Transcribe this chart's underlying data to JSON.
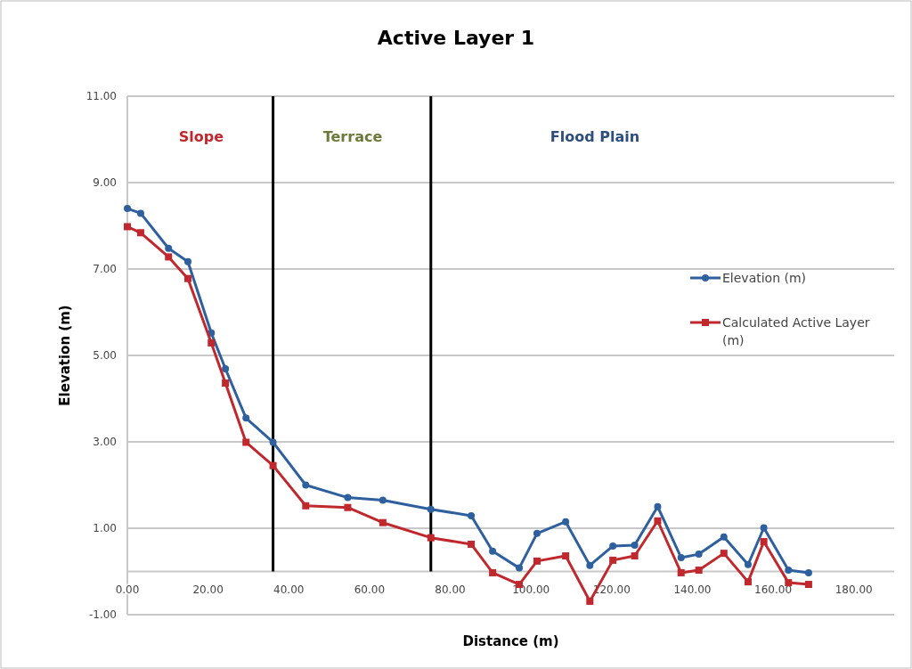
{
  "chart_data": {
    "type": "line",
    "title": "Active Layer 1",
    "xlabel": "Distance (m)",
    "ylabel": "Elevation (m)",
    "x": [
      0,
      3.3,
      10.2,
      15.0,
      20.8,
      24.3,
      29.4,
      36.1,
      44.2,
      54.6,
      63.3,
      75.2,
      85.2,
      90.5,
      97.1,
      101.5,
      108.6,
      114.6,
      120.3,
      125.7,
      131.4,
      137.2,
      141.6,
      147.8,
      153.8,
      157.7,
      163.8,
      168.8
    ],
    "series": [
      {
        "name": "Elevation (m)",
        "color": "#2e5f9e",
        "marker": "circle",
        "values": [
          8.4,
          8.29,
          7.48,
          7.17,
          5.52,
          4.69,
          3.55,
          2.99,
          2.0,
          1.71,
          1.65,
          1.44,
          1.29,
          0.47,
          0.08,
          0.88,
          1.15,
          0.14,
          0.59,
          0.61,
          1.5,
          0.32,
          0.4,
          0.8,
          0.16,
          1.01,
          0.03,
          -0.03
        ]
      },
      {
        "name": "Calculated Active Layer (m)",
        "color": "#c0282d",
        "marker": "square",
        "values": [
          7.98,
          7.84,
          7.28,
          6.78,
          5.29,
          4.36,
          2.99,
          2.45,
          1.52,
          1.48,
          1.13,
          0.78,
          0.63,
          -0.03,
          -0.3,
          0.24,
          0.36,
          -0.69,
          0.26,
          0.36,
          1.17,
          -0.03,
          0.03,
          0.42,
          -0.24,
          0.69,
          -0.26,
          -0.3
        ]
      }
    ],
    "xlim": [
      0,
      190
    ],
    "xticks": [
      {
        "value": 0,
        "label": "0.00"
      },
      {
        "value": 20,
        "label": "20.00"
      },
      {
        "value": 40,
        "label": "40.00"
      },
      {
        "value": 60,
        "label": "60.00"
      },
      {
        "value": 80,
        "label": "80.00"
      },
      {
        "value": 100,
        "label": "100.00"
      },
      {
        "value": 120,
        "label": "120.00"
      },
      {
        "value": 140,
        "label": "140.00"
      },
      {
        "value": 160,
        "label": "160.00"
      },
      {
        "value": 180,
        "label": "180.00"
      }
    ],
    "ylim": [
      -1,
      11
    ],
    "yticks": [
      {
        "value": -1,
        "label": "-1.00"
      },
      {
        "value": 1,
        "label": "1.00"
      },
      {
        "value": 3,
        "label": "3.00"
      },
      {
        "value": 5,
        "label": "5.00"
      },
      {
        "value": 7,
        "label": "7.00"
      },
      {
        "value": 9,
        "label": "9.00"
      },
      {
        "value": 11,
        "label": "11.00"
      }
    ],
    "grid": "y",
    "legend": "right",
    "line_style": "solid",
    "ref_lines": [
      {
        "axis": "x",
        "value": 36.1,
        "color": "#000000"
      },
      {
        "axis": "x",
        "value": 75.2,
        "color": "#000000"
      }
    ],
    "annotations": [
      "Slope",
      "Terrace",
      "Flood Plain"
    ]
  }
}
